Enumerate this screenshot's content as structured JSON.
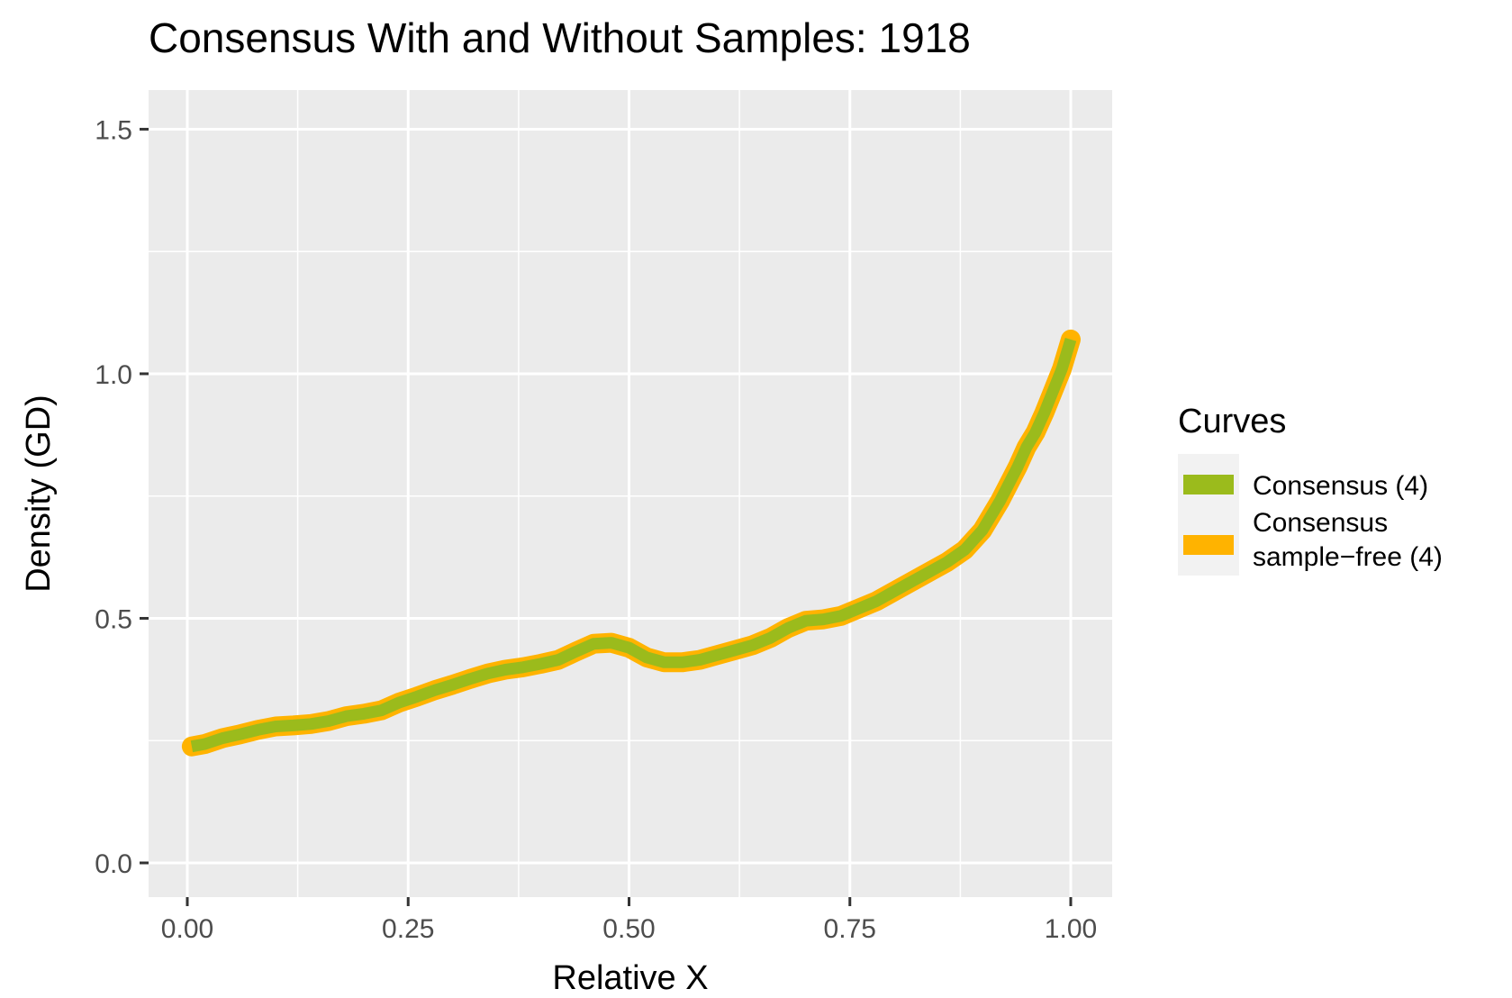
{
  "chart_data": {
    "type": "line",
    "title": "Consensus With and Without Samples:  1918",
    "xlabel": "Relative X",
    "ylabel": "Density (GD)",
    "xlim": [
      -0.09,
      2.0
    ],
    "ylim": [
      -0.07,
      1.58
    ],
    "xticks": [
      0.0,
      0.25,
      0.5,
      0.75,
      1.0
    ],
    "xtick_labels": [
      "0.00",
      "0.25",
      "0.50",
      "0.75",
      "1.00"
    ],
    "yticks": [
      0.0,
      0.5,
      1.0,
      1.5
    ],
    "ytick_labels": [
      "0.0",
      "0.5",
      "1.0",
      "1.5"
    ],
    "grid": true,
    "legend": {
      "title": "Curves",
      "placement": "right",
      "entries": [
        {
          "label_lines": [
            "Consensus (4)"
          ],
          "color": "#9BBB1C"
        },
        {
          "label_lines": [
            "Consensus",
            "sample−free (4)"
          ],
          "color": "#FFB300"
        }
      ]
    },
    "series": [
      {
        "name": "Consensus sample−free (4)",
        "color": "#FFB300",
        "x": [
          0.005,
          0.02,
          0.04,
          0.06,
          0.08,
          0.1,
          0.12,
          0.14,
          0.16,
          0.18,
          0.2,
          0.22,
          0.24,
          0.26,
          0.28,
          0.3,
          0.32,
          0.34,
          0.36,
          0.38,
          0.4,
          0.42,
          0.44,
          0.46,
          0.48,
          0.5,
          0.52,
          0.54,
          0.56,
          0.58,
          0.6,
          0.62,
          0.64,
          0.66,
          0.68,
          0.7,
          0.72,
          0.74,
          0.76,
          0.78,
          0.8,
          0.82,
          0.84,
          0.86,
          0.88,
          0.9,
          0.92,
          0.94,
          0.95,
          0.96,
          0.97,
          0.98,
          0.99,
          1.0
        ],
        "y": [
          0.238,
          0.243,
          0.255,
          0.263,
          0.272,
          0.279,
          0.281,
          0.284,
          0.29,
          0.3,
          0.305,
          0.312,
          0.328,
          0.34,
          0.353,
          0.364,
          0.376,
          0.387,
          0.395,
          0.4,
          0.407,
          0.415,
          0.432,
          0.448,
          0.45,
          0.44,
          0.42,
          0.41,
          0.41,
          0.415,
          0.425,
          0.435,
          0.445,
          0.46,
          0.48,
          0.495,
          0.498,
          0.505,
          0.52,
          0.535,
          0.555,
          0.575,
          0.595,
          0.615,
          0.64,
          0.68,
          0.74,
          0.81,
          0.85,
          0.88,
          0.92,
          0.965,
          1.01,
          1.07
        ]
      },
      {
        "name": "Consensus (4)",
        "color": "#9BBB1C",
        "x": [
          0.005,
          0.02,
          0.04,
          0.06,
          0.08,
          0.1,
          0.12,
          0.14,
          0.16,
          0.18,
          0.2,
          0.22,
          0.24,
          0.26,
          0.28,
          0.3,
          0.32,
          0.34,
          0.36,
          0.38,
          0.4,
          0.42,
          0.44,
          0.46,
          0.48,
          0.5,
          0.52,
          0.54,
          0.56,
          0.58,
          0.6,
          0.62,
          0.64,
          0.66,
          0.68,
          0.7,
          0.72,
          0.74,
          0.76,
          0.78,
          0.8,
          0.82,
          0.84,
          0.86,
          0.88,
          0.9,
          0.92,
          0.94,
          0.95,
          0.96,
          0.97,
          0.98,
          0.99,
          1.0
        ],
        "y": [
          0.238,
          0.243,
          0.255,
          0.263,
          0.272,
          0.279,
          0.281,
          0.284,
          0.29,
          0.3,
          0.305,
          0.312,
          0.328,
          0.34,
          0.353,
          0.364,
          0.376,
          0.387,
          0.395,
          0.4,
          0.407,
          0.415,
          0.432,
          0.448,
          0.45,
          0.44,
          0.42,
          0.41,
          0.41,
          0.415,
          0.425,
          0.435,
          0.445,
          0.46,
          0.48,
          0.495,
          0.498,
          0.505,
          0.52,
          0.535,
          0.555,
          0.575,
          0.595,
          0.615,
          0.64,
          0.68,
          0.74,
          0.81,
          0.85,
          0.88,
          0.92,
          0.965,
          1.01,
          1.07
        ]
      }
    ]
  }
}
